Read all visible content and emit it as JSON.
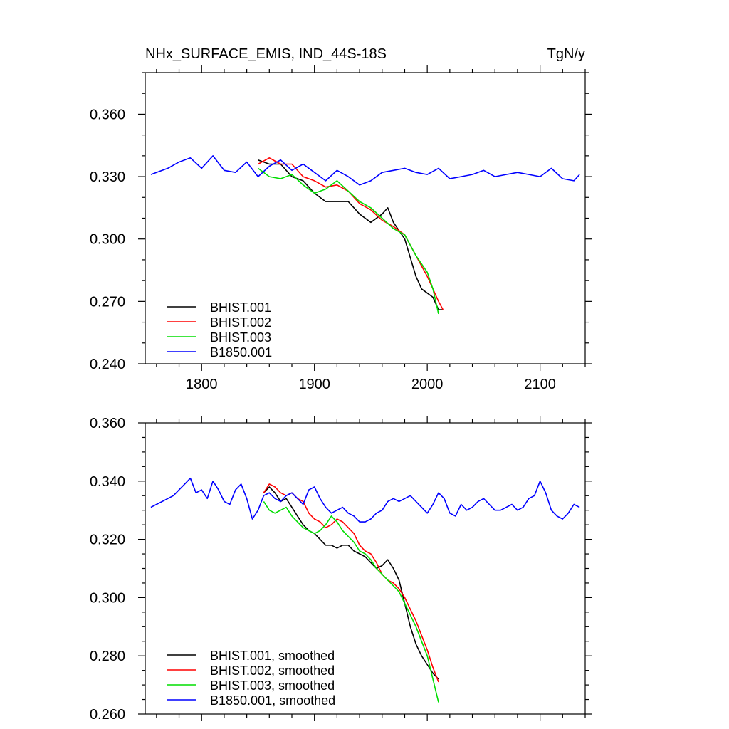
{
  "chart_data": [
    {
      "type": "line",
      "title": "NHx_SURFACE_EMIS, IND_44S-18S",
      "units": "TgN/y",
      "xlabel": "",
      "ylabel": "",
      "xlim": [
        1750,
        2140
      ],
      "ylim": [
        0.24,
        0.38
      ],
      "x_ticks": [
        1800,
        1900,
        2000,
        2100
      ],
      "x_tick_labels": [
        "1800",
        "1900",
        "2000",
        "2100"
      ],
      "y_ticks": [
        0.24,
        0.27,
        0.3,
        0.33,
        0.36
      ],
      "y_tick_labels": [
        "0.240",
        "0.270",
        "0.300",
        "0.330",
        "0.360"
      ],
      "grid": false,
      "legend_position": "bottom-left",
      "series": [
        {
          "name": "BHIST.001",
          "color": "#000000",
          "x": [
            1850,
            1860,
            1870,
            1880,
            1890,
            1900,
            1910,
            1920,
            1930,
            1940,
            1950,
            1960,
            1965,
            1970,
            1980,
            1990,
            1995,
            2000,
            2005,
            2010,
            2014
          ],
          "y": [
            0.338,
            0.336,
            0.336,
            0.33,
            0.328,
            0.322,
            0.318,
            0.318,
            0.318,
            0.312,
            0.308,
            0.312,
            0.315,
            0.308,
            0.3,
            0.282,
            0.276,
            0.274,
            0.272,
            0.266,
            0.266
          ]
        },
        {
          "name": "BHIST.002",
          "color": "#ff0000",
          "x": [
            1850,
            1860,
            1870,
            1880,
            1890,
            1900,
            1910,
            1920,
            1930,
            1940,
            1950,
            1960,
            1970,
            1980,
            1990,
            2000,
            2005,
            2010,
            2014
          ],
          "y": [
            0.336,
            0.339,
            0.336,
            0.336,
            0.33,
            0.328,
            0.325,
            0.326,
            0.323,
            0.317,
            0.314,
            0.309,
            0.306,
            0.302,
            0.292,
            0.282,
            0.276,
            0.27,
            0.266
          ]
        },
        {
          "name": "BHIST.003",
          "color": "#00dd00",
          "x": [
            1850,
            1860,
            1870,
            1880,
            1890,
            1900,
            1910,
            1920,
            1930,
            1940,
            1950,
            1960,
            1970,
            1980,
            1990,
            2000,
            2005,
            2010
          ],
          "y": [
            0.334,
            0.33,
            0.329,
            0.331,
            0.326,
            0.322,
            0.324,
            0.328,
            0.323,
            0.318,
            0.315,
            0.31,
            0.305,
            0.302,
            0.292,
            0.284,
            0.276,
            0.264
          ]
        },
        {
          "name": "B1850.001",
          "color": "#0000ff",
          "x": [
            1755,
            1770,
            1780,
            1790,
            1800,
            1810,
            1820,
            1830,
            1840,
            1850,
            1860,
            1870,
            1880,
            1890,
            1900,
            1910,
            1920,
            1930,
            1940,
            1950,
            1960,
            1970,
            1980,
            1990,
            2000,
            2010,
            2020,
            2030,
            2040,
            2050,
            2060,
            2070,
            2080,
            2090,
            2100,
            2110,
            2120,
            2130,
            2135
          ],
          "y": [
            0.331,
            0.334,
            0.337,
            0.339,
            0.334,
            0.34,
            0.333,
            0.332,
            0.337,
            0.33,
            0.335,
            0.338,
            0.333,
            0.336,
            0.332,
            0.328,
            0.333,
            0.33,
            0.326,
            0.328,
            0.332,
            0.333,
            0.334,
            0.332,
            0.331,
            0.334,
            0.329,
            0.33,
            0.331,
            0.333,
            0.33,
            0.331,
            0.332,
            0.331,
            0.33,
            0.334,
            0.329,
            0.328,
            0.331
          ]
        }
      ]
    },
    {
      "type": "line",
      "title": "",
      "xlabel": "",
      "ylabel": "",
      "xlim": [
        1750,
        2140
      ],
      "ylim": [
        0.26,
        0.36
      ],
      "x_ticks": [
        1800,
        1900,
        2000,
        2100
      ],
      "y_ticks": [
        0.26,
        0.28,
        0.3,
        0.32,
        0.34,
        0.36
      ],
      "y_tick_labels": [
        "0.260",
        "0.280",
        "0.300",
        "0.320",
        "0.340",
        "0.360"
      ],
      "grid": false,
      "legend_position": "bottom-left",
      "series": [
        {
          "name": "BHIST.001, smoothed",
          "color": "#000000",
          "x": [
            1855,
            1860,
            1865,
            1870,
            1875,
            1880,
            1885,
            1890,
            1895,
            1900,
            1905,
            1910,
            1915,
            1920,
            1925,
            1930,
            1935,
            1940,
            1945,
            1950,
            1955,
            1960,
            1965,
            1970,
            1975,
            1980,
            1985,
            1990,
            1995,
            2000,
            2005,
            2010
          ],
          "y": [
            0.336,
            0.338,
            0.336,
            0.333,
            0.334,
            0.331,
            0.328,
            0.325,
            0.323,
            0.322,
            0.32,
            0.318,
            0.318,
            0.317,
            0.318,
            0.318,
            0.316,
            0.315,
            0.314,
            0.312,
            0.31,
            0.311,
            0.313,
            0.31,
            0.306,
            0.298,
            0.29,
            0.284,
            0.28,
            0.277,
            0.274,
            0.272
          ]
        },
        {
          "name": "BHIST.002, smoothed",
          "color": "#ff0000",
          "x": [
            1855,
            1860,
            1865,
            1870,
            1875,
            1880,
            1885,
            1890,
            1895,
            1900,
            1905,
            1910,
            1915,
            1920,
            1925,
            1930,
            1935,
            1940,
            1945,
            1950,
            1955,
            1960,
            1965,
            1970,
            1975,
            1980,
            1985,
            1990,
            1995,
            2000,
            2005,
            2010
          ],
          "y": [
            0.336,
            0.339,
            0.338,
            0.336,
            0.335,
            0.336,
            0.334,
            0.333,
            0.329,
            0.327,
            0.326,
            0.324,
            0.325,
            0.327,
            0.326,
            0.324,
            0.322,
            0.318,
            0.316,
            0.315,
            0.312,
            0.308,
            0.306,
            0.305,
            0.303,
            0.3,
            0.296,
            0.292,
            0.287,
            0.282,
            0.276,
            0.271
          ]
        },
        {
          "name": "BHIST.003, smoothed",
          "color": "#00dd00",
          "x": [
            1855,
            1860,
            1865,
            1870,
            1875,
            1880,
            1885,
            1890,
            1895,
            1900,
            1905,
            1910,
            1915,
            1920,
            1925,
            1930,
            1935,
            1940,
            1945,
            1950,
            1955,
            1960,
            1965,
            1970,
            1975,
            1980,
            1985,
            1990,
            1995,
            2000,
            2005,
            2010
          ],
          "y": [
            0.333,
            0.33,
            0.329,
            0.33,
            0.331,
            0.328,
            0.326,
            0.324,
            0.323,
            0.322,
            0.323,
            0.325,
            0.328,
            0.326,
            0.323,
            0.321,
            0.319,
            0.316,
            0.315,
            0.313,
            0.31,
            0.308,
            0.306,
            0.304,
            0.302,
            0.298,
            0.294,
            0.29,
            0.285,
            0.28,
            0.272,
            0.264
          ]
        },
        {
          "name": "B1850.001, smoothed",
          "color": "#0000ff",
          "x": [
            1755,
            1760,
            1765,
            1770,
            1775,
            1780,
            1785,
            1790,
            1795,
            1800,
            1805,
            1810,
            1815,
            1820,
            1825,
            1830,
            1835,
            1840,
            1845,
            1850,
            1855,
            1860,
            1865,
            1870,
            1875,
            1880,
            1885,
            1890,
            1895,
            1900,
            1905,
            1910,
            1915,
            1920,
            1925,
            1930,
            1935,
            1940,
            1945,
            1950,
            1955,
            1960,
            1965,
            1970,
            1975,
            1980,
            1985,
            1990,
            1995,
            2000,
            2005,
            2010,
            2015,
            2020,
            2025,
            2030,
            2035,
            2040,
            2045,
            2050,
            2055,
            2060,
            2065,
            2070,
            2075,
            2080,
            2085,
            2090,
            2095,
            2100,
            2105,
            2110,
            2115,
            2120,
            2125,
            2130,
            2135
          ],
          "y": [
            0.331,
            0.332,
            0.333,
            0.334,
            0.335,
            0.337,
            0.339,
            0.341,
            0.336,
            0.337,
            0.334,
            0.34,
            0.337,
            0.333,
            0.332,
            0.337,
            0.339,
            0.334,
            0.327,
            0.33,
            0.335,
            0.336,
            0.334,
            0.333,
            0.335,
            0.336,
            0.334,
            0.332,
            0.337,
            0.338,
            0.334,
            0.331,
            0.329,
            0.33,
            0.331,
            0.329,
            0.328,
            0.326,
            0.326,
            0.327,
            0.329,
            0.33,
            0.333,
            0.334,
            0.333,
            0.334,
            0.335,
            0.333,
            0.331,
            0.329,
            0.332,
            0.336,
            0.334,
            0.329,
            0.328,
            0.332,
            0.33,
            0.331,
            0.333,
            0.334,
            0.332,
            0.33,
            0.33,
            0.331,
            0.332,
            0.33,
            0.331,
            0.334,
            0.335,
            0.34,
            0.336,
            0.33,
            0.328,
            0.327,
            0.329,
            0.332,
            0.331
          ]
        }
      ]
    }
  ]
}
